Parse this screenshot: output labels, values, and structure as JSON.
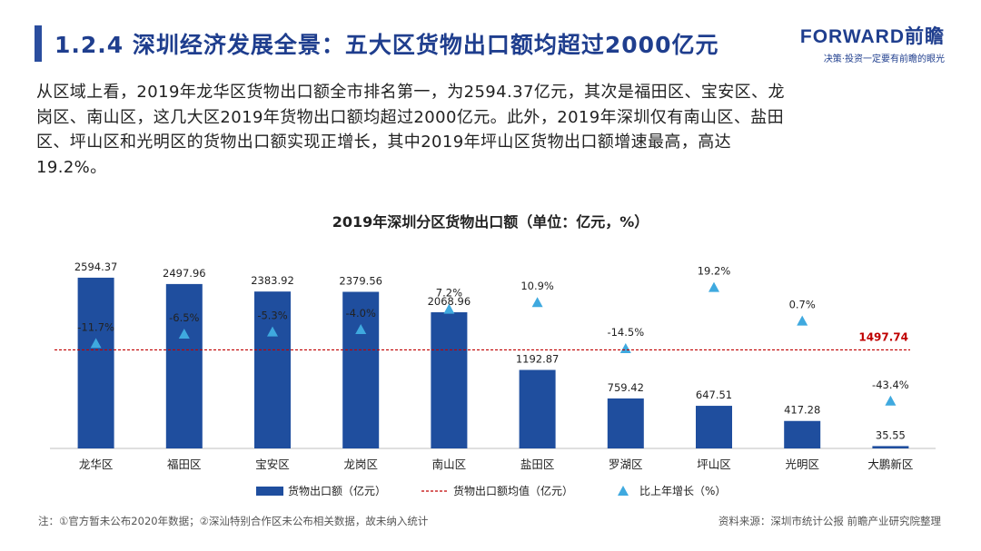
{
  "header": {
    "title": "1.2.4 深圳经济发展全景：五大区货物出口额均超过2000亿元",
    "logo": "FORWARD前瞻",
    "logo_tagline": "决策·投资一定要有前瞻的眼光"
  },
  "paragraph": {
    "lines": [
      "从区域上看，2019年龙华区货物出口额全市排名第一，为2594.37亿元，其次是福田区、宝安区、龙",
      "岗区、南山区，这几大区2019年货物出口额均超过2000亿元。此外，2019年深圳仅有南山区、盐田",
      "区、坪山区和光明区的货物出口额实现正增长，其中2019年坪山区货物出口额增速最高，高达",
      "19.2%。"
    ]
  },
  "footer": {
    "note": "注：①官方暂未公布2020年数据；②深汕特别合作区未公布相关数据，故未纳入统计",
    "source": "资料来源：深圳市统计公报 前瞻产业研究院整理"
  },
  "colors": {
    "bar": "#1f4e9e",
    "marker": "#3fa9df",
    "avg_line": "#c00000",
    "title": "#1f3e8e"
  },
  "chart_data": {
    "type": "bar",
    "title": "2019年深圳分区货物出口额（单位：亿元，%）",
    "categories": [
      "龙华区",
      "福田区",
      "宝安区",
      "龙岗区",
      "南山区",
      "盐田区",
      "罗湖区",
      "坪山区",
      "光明区",
      "大鹏新区"
    ],
    "series": [
      {
        "name": "货物出口额（亿元）",
        "type": "bar",
        "values": [
          2594.37,
          2497.96,
          2383.92,
          2379.56,
          2068.96,
          1192.87,
          759.42,
          647.51,
          417.28,
          35.55
        ],
        "labels": [
          "2594.37",
          "2497.96",
          "2383.92",
          "2379.56",
          "2068.96",
          "1192.87",
          "759.42",
          "647.51",
          "417.28",
          "35.55"
        ]
      },
      {
        "name": "比上年增长（%）",
        "type": "marker",
        "values": [
          -11.7,
          -6.5,
          -5.3,
          -4.0,
          7.2,
          10.9,
          -14.5,
          19.2,
          0.7,
          -43.4
        ],
        "labels": [
          "-11.7%",
          "-6.5%",
          "-5.3%",
          "-4.0%",
          "7.2%",
          "10.9%",
          "-14.5%",
          "19.2%",
          "0.7%",
          "-43.4%"
        ]
      }
    ],
    "average": {
      "name": "货物出口额均值（亿元）",
      "value": 1497.74,
      "label": "1497.74"
    },
    "ylim": [
      0,
      2800
    ],
    "growth_ylim": [
      -60,
      25
    ],
    "legend_position": "bottom",
    "grid": false
  }
}
